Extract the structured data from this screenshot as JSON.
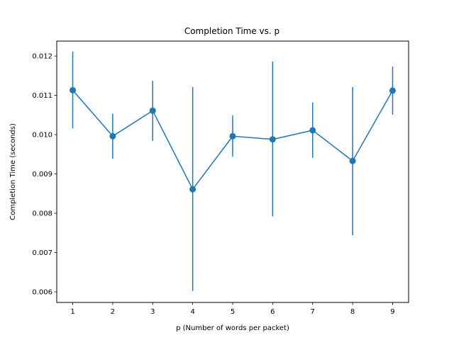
{
  "chart_data": {
    "type": "line",
    "title": "Completion Time vs. p",
    "xlabel": "p (Number of words per packet)",
    "ylabel": "Completion Time (seconds)",
    "xlim": [
      0.6,
      9.4
    ],
    "ylim": [
      0.00573,
      0.01238
    ],
    "xticks": [
      1,
      2,
      3,
      4,
      5,
      6,
      7,
      8,
      9
    ],
    "xtick_labels": [
      "1",
      "2",
      "3",
      "4",
      "5",
      "6",
      "7",
      "8",
      "9"
    ],
    "yticks": [
      0.006,
      0.007,
      0.008,
      0.009,
      0.01,
      0.011,
      0.012
    ],
    "ytick_labels": [
      "0.006",
      "0.007",
      "0.008",
      "0.009",
      "0.010",
      "0.011",
      "0.012"
    ],
    "grid": false,
    "series": [
      {
        "color": "#1f77b4",
        "x": [
          1,
          2,
          3,
          4,
          5,
          6,
          7,
          8,
          9
        ],
        "y": [
          0.01113,
          0.00996,
          0.01061,
          0.00861,
          0.00996,
          0.00988,
          0.01011,
          0.00933,
          0.01112
        ],
        "yerr_low": [
          0.01016,
          0.00939,
          0.00984,
          0.00602,
          0.00944,
          0.00792,
          0.00941,
          0.00744,
          0.01051
        ],
        "yerr_high": [
          0.01211,
          0.01053,
          0.01137,
          0.01121,
          0.01049,
          0.01186,
          0.01082,
          0.01121,
          0.01173
        ]
      }
    ]
  }
}
